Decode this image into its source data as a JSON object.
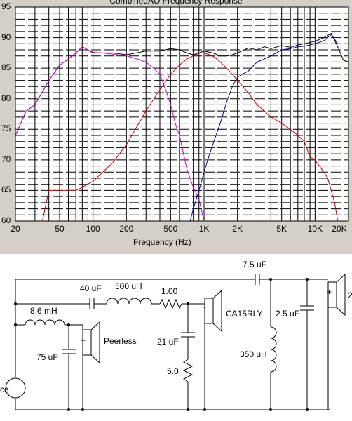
{
  "chart_data": {
    "type": "line",
    "title": "CombinedAO Frequency Response",
    "xlabel": "Frequency (Hz)",
    "ylabel": "",
    "x_scale": "log",
    "xlim": [
      20,
      20000
    ],
    "ylim": [
      60,
      95
    ],
    "grid": true,
    "y_ticks": [
      "95",
      "90",
      "85",
      "80",
      "75",
      "70",
      "65",
      "60"
    ],
    "x_ticks": [
      {
        "label": "20",
        "value": 20
      },
      {
        "label": "50",
        "value": 50
      },
      {
        "label": "100",
        "value": 100
      },
      {
        "label": "200",
        "value": 200
      },
      {
        "label": "500",
        "value": 500
      },
      {
        "label": "1K",
        "value": 1000
      },
      {
        "label": "2K",
        "value": 2000
      },
      {
        "label": "5K",
        "value": 5000
      },
      {
        "label": "10K",
        "value": 10000
      },
      {
        "label": "20K",
        "value": 20000
      }
    ],
    "series": [
      {
        "color": "#000000",
        "x": [
          20,
          25,
          30,
          40,
          50,
          60,
          70,
          80,
          100,
          120,
          150,
          200,
          300,
          400,
          500,
          600,
          700,
          800,
          900,
          1000,
          1200,
          1400,
          1600,
          1800,
          2000,
          2500,
          3000,
          3500,
          4000,
          5000,
          6000,
          7000,
          8000,
          10000,
          12000,
          14000,
          16000,
          18000,
          20000
        ],
        "y": [
          74,
          78,
          79,
          83,
          85.5,
          86.5,
          87.5,
          88.5,
          87.5,
          87.5,
          87.5,
          87.2,
          87.8,
          87.8,
          88.2,
          88,
          87.5,
          87.2,
          87.5,
          87.8,
          87.5,
          87,
          87,
          87.2,
          87.5,
          88.3,
          88,
          88.5,
          88.2,
          88.7,
          88.4,
          88.8,
          89,
          89.4,
          90,
          90.7,
          88.5,
          86.3,
          86
        ]
      },
      {
        "color": "#cc00cc",
        "x": [
          20,
          25,
          30,
          40,
          50,
          60,
          70,
          80,
          90,
          100,
          120,
          150,
          200,
          250,
          300,
          350,
          400,
          450,
          500,
          550,
          600,
          700,
          800,
          900,
          1000
        ],
        "y": [
          74,
          78,
          79,
          83,
          85.5,
          86.5,
          87.5,
          88.5,
          88,
          87.6,
          87.5,
          87.3,
          87,
          86.5,
          86,
          85,
          84,
          81.5,
          79,
          76,
          74,
          68.5,
          65.5,
          63.5,
          60
        ]
      },
      {
        "color": "#cc0000",
        "x": [
          35,
          40,
          50,
          60,
          70,
          80,
          100,
          150,
          200,
          300,
          400,
          500,
          600,
          700,
          800,
          900,
          1000,
          1200,
          1400,
          1600,
          1800,
          2000,
          2500,
          3000,
          3500,
          4000,
          5000,
          6000,
          7000,
          8000,
          9000,
          10000,
          12000,
          13000,
          15000,
          16000
        ],
        "y": [
          60,
          65,
          65,
          65,
          65,
          65.5,
          66.5,
          69.5,
          72.5,
          78,
          81.5,
          84,
          85.5,
          86.5,
          87,
          87.5,
          87.5,
          87,
          86,
          85,
          84,
          83,
          81,
          79,
          78,
          77,
          76,
          75,
          74,
          73,
          70.5,
          70,
          68,
          67,
          63,
          60
        ]
      },
      {
        "color": "#00008b",
        "x": [
          750,
          800,
          900,
          1000,
          1100,
          1200,
          1400,
          1600,
          1800,
          2000,
          2200,
          2500,
          3000,
          3500,
          4000,
          5000,
          6000,
          7000,
          8000,
          10000,
          12000,
          14000,
          16000
        ],
        "y": [
          60,
          62,
          65,
          68,
          70.5,
          72.5,
          76,
          79.5,
          82,
          83.5,
          84,
          84.5,
          86,
          86.5,
          87,
          88,
          88.2,
          88.5,
          88.6,
          89,
          89.5,
          90.5,
          89
        ]
      }
    ]
  },
  "schematic": {
    "labels": {
      "c_series_1": "40 uF",
      "l_series_1": "500 uH",
      "r_series_1": "1.00",
      "c_top": "7.5 uF",
      "l_woofer": "8.6 mH",
      "c_woofer_shunt": "75 uF",
      "woofer": "Peerless",
      "c_mid_shunt": "21 uF",
      "r_mid_shunt": "5.0",
      "mid": "CA15RLY",
      "l_tweeter_shunt": "350 uH",
      "c_tweeter_shunt": "2.5 uF",
      "source": "ce",
      "tweeter_partial": "2"
    }
  }
}
